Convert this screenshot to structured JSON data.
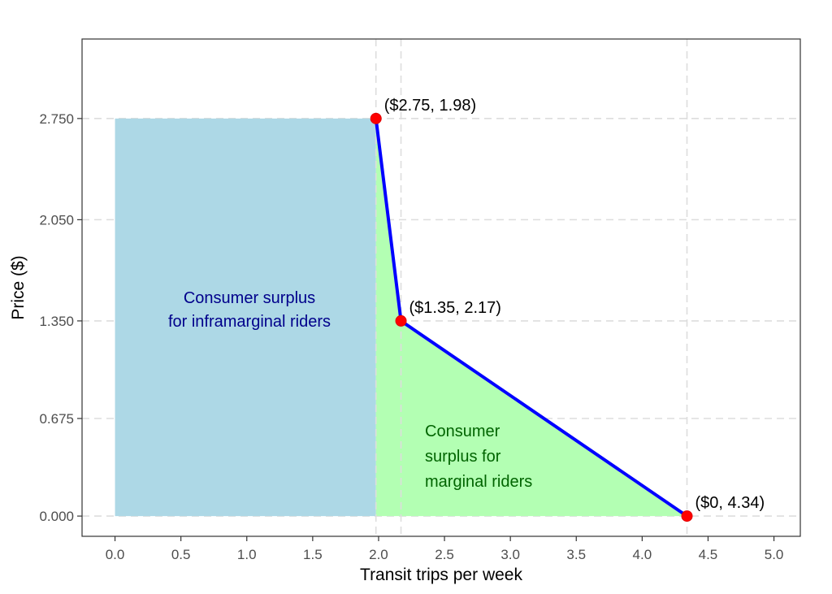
{
  "chart_data": {
    "type": "line",
    "title": "",
    "xlabel": "Transit trips per week",
    "ylabel": "Price ($)",
    "xlim": [
      -0.25,
      5.2
    ],
    "ylim": [
      -0.14,
      3.3
    ],
    "x_ticks": [
      0.0,
      0.5,
      1.0,
      1.5,
      2.0,
      2.5,
      3.0,
      3.5,
      4.0,
      4.5,
      5.0
    ],
    "x_tick_labels": [
      "0.0",
      "0.5",
      "1.0",
      "1.5",
      "2.0",
      "2.5",
      "3.0",
      "3.5",
      "4.0",
      "4.5",
      "5.0"
    ],
    "y_ticks": [
      0.0,
      0.675,
      1.35,
      2.05,
      2.75
    ],
    "y_tick_labels": [
      "0.000",
      "0.675",
      "1.350",
      "2.050",
      "2.750"
    ],
    "grid": true,
    "vlines": [
      1.98,
      2.17,
      4.34
    ],
    "series": [
      {
        "x": [
          1.98,
          2.17,
          4.34
        ],
        "y": [
          2.75,
          1.35,
          0.0
        ],
        "color": "#0000ff"
      }
    ],
    "points": [
      {
        "x": 1.98,
        "y": 2.75,
        "label": "($2.75, 1.98)"
      },
      {
        "x": 2.17,
        "y": 1.35,
        "label": "($1.35, 2.17)"
      },
      {
        "x": 4.34,
        "y": 0.0,
        "label": "($0, 4.34)"
      }
    ],
    "regions": [
      {
        "x_range": [
          0,
          1.98
        ],
        "y_range": [
          0,
          2.75
        ],
        "color": "#add8e6",
        "label_lines": [
          "Consumer surplus",
          "for inframarginal riders"
        ],
        "label_color": "#00008b"
      },
      {
        "polygon": [
          [
            1.98,
            0
          ],
          [
            1.98,
            2.75
          ],
          [
            2.17,
            1.35
          ],
          [
            4.34,
            0
          ]
        ],
        "color": "#b3ffb3",
        "label_lines": [
          "Consumer",
          "surplus for",
          "marginal riders"
        ],
        "label_color": "#006400"
      }
    ],
    "point_color": "#ff0000",
    "panel_border_color": "#333333",
    "grid_color": "#dddddd"
  }
}
